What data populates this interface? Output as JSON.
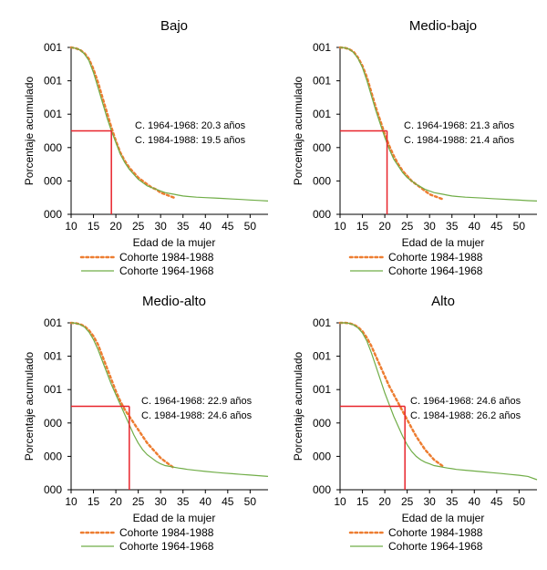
{
  "colors": {
    "cohort_1984": "#ED7D31",
    "cohort_1964": "#70AD47",
    "reference": "#E8242B",
    "axis": "#000000"
  },
  "chart_data": [
    {
      "type": "line",
      "title": "Bajo",
      "xlabel": "Edad de la mujer",
      "ylabel": "Porcentaje acumulado",
      "x_ticks": [
        "10",
        "15",
        "20",
        "25",
        "30",
        "35",
        "40",
        "45",
        "50"
      ],
      "y_ticks": [
        "000",
        "000",
        "000",
        "001",
        "001",
        "001"
      ],
      "xlim": [
        10,
        54
      ],
      "ylim": [
        0,
        1
      ],
      "grid": false,
      "legend_position": "bottom",
      "legend": [
        "Cohorte 1984-1988",
        "Cohorte 1964-1968"
      ],
      "annotations": [
        "C. 1964-1968: 20.3 años",
        "C. 1984-1988: 19.5 años"
      ],
      "reference": {
        "x": 19,
        "y": 0.5
      },
      "series": [
        {
          "key": "c1984",
          "style": "dotted",
          "x": [
            10,
            11,
            12,
            13,
            14,
            15,
            16,
            17,
            18,
            19,
            20,
            21,
            22,
            23,
            24,
            25,
            26,
            27,
            28,
            29,
            30,
            31,
            32,
            33
          ],
          "y": [
            1.0,
            0.995,
            0.985,
            0.965,
            0.93,
            0.87,
            0.79,
            0.7,
            0.61,
            0.52,
            0.44,
            0.37,
            0.32,
            0.28,
            0.25,
            0.22,
            0.2,
            0.18,
            0.16,
            0.15,
            0.13,
            0.12,
            0.11,
            0.1
          ]
        },
        {
          "key": "c1964",
          "style": "solid",
          "x": [
            10,
            11,
            12,
            13,
            14,
            15,
            16,
            17,
            18,
            19,
            20,
            21,
            22,
            23,
            24,
            25,
            26,
            27,
            28,
            29,
            30,
            31,
            32,
            33,
            34,
            35,
            36,
            38,
            40,
            42,
            44,
            46,
            48,
            50,
            52,
            54
          ],
          "y": [
            1.0,
            0.995,
            0.985,
            0.96,
            0.92,
            0.85,
            0.76,
            0.67,
            0.58,
            0.5,
            0.43,
            0.36,
            0.31,
            0.27,
            0.24,
            0.21,
            0.19,
            0.17,
            0.16,
            0.15,
            0.14,
            0.13,
            0.125,
            0.12,
            0.115,
            0.11,
            0.107,
            0.103,
            0.1,
            0.098,
            0.095,
            0.092,
            0.089,
            0.086,
            0.083,
            0.08
          ]
        }
      ]
    },
    {
      "type": "line",
      "title": "Medio-bajo",
      "xlabel": "Edad de la mujer",
      "ylabel": "Porcentaje acumulado",
      "x_ticks": [
        "10",
        "15",
        "20",
        "25",
        "30",
        "35",
        "40",
        "45",
        "50"
      ],
      "y_ticks": [
        "000",
        "000",
        "000",
        "001",
        "001",
        "001"
      ],
      "xlim": [
        10,
        54
      ],
      "ylim": [
        0,
        1
      ],
      "grid": false,
      "legend_position": "bottom",
      "legend": [
        "Cohorte 1984-1988",
        "Cohorte 1964-1968"
      ],
      "annotations": [
        "C. 1964-1968: 21.3 años",
        "C. 1984-1988: 21.4 años"
      ],
      "reference": {
        "x": 20.5,
        "y": 0.5
      },
      "series": [
        {
          "key": "c1984",
          "style": "dotted",
          "x": [
            10,
            11,
            12,
            13,
            14,
            15,
            16,
            17,
            18,
            19,
            20,
            21,
            22,
            23,
            24,
            25,
            26,
            27,
            28,
            29,
            30,
            31,
            32,
            33
          ],
          "y": [
            1.0,
            0.998,
            0.99,
            0.975,
            0.94,
            0.89,
            0.82,
            0.73,
            0.64,
            0.56,
            0.48,
            0.41,
            0.35,
            0.3,
            0.26,
            0.23,
            0.2,
            0.18,
            0.16,
            0.14,
            0.12,
            0.11,
            0.1,
            0.09
          ]
        },
        {
          "key": "c1964",
          "style": "solid",
          "x": [
            10,
            11,
            12,
            13,
            14,
            15,
            16,
            17,
            18,
            19,
            20,
            21,
            22,
            23,
            24,
            25,
            26,
            27,
            28,
            29,
            30,
            31,
            32,
            33,
            34,
            35,
            36,
            38,
            40,
            42,
            44,
            46,
            48,
            50,
            52,
            54
          ],
          "y": [
            1.0,
            0.998,
            0.99,
            0.97,
            0.935,
            0.88,
            0.8,
            0.71,
            0.62,
            0.54,
            0.46,
            0.39,
            0.33,
            0.29,
            0.25,
            0.22,
            0.2,
            0.18,
            0.165,
            0.15,
            0.14,
            0.13,
            0.125,
            0.12,
            0.115,
            0.11,
            0.107,
            0.103,
            0.1,
            0.097,
            0.094,
            0.091,
            0.088,
            0.085,
            0.082,
            0.08
          ]
        }
      ]
    },
    {
      "type": "line",
      "title": "Medio-alto",
      "xlabel": "Edad de la mujer",
      "ylabel": "Porcentaje acumulado",
      "x_ticks": [
        "10",
        "15",
        "20",
        "25",
        "30",
        "35",
        "40",
        "45",
        "50"
      ],
      "y_ticks": [
        "000",
        "000",
        "000",
        "001",
        "001",
        "001"
      ],
      "xlim": [
        10,
        54
      ],
      "ylim": [
        0,
        1
      ],
      "grid": false,
      "legend_position": "bottom",
      "legend": [
        "Cohorte 1984-1988",
        "Cohorte 1964-1968"
      ],
      "annotations": [
        "C. 1964-1968: 22.9 años",
        "C. 1984-1988: 24.6 años"
      ],
      "reference": {
        "x": 23,
        "y": 0.5
      },
      "series": [
        {
          "key": "c1984",
          "style": "dotted",
          "x": [
            10,
            11,
            12,
            13,
            14,
            15,
            16,
            17,
            18,
            19,
            20,
            21,
            22,
            23,
            24,
            25,
            26,
            27,
            28,
            29,
            30,
            31,
            32,
            33
          ],
          "y": [
            1.0,
            0.998,
            0.992,
            0.98,
            0.955,
            0.92,
            0.87,
            0.8,
            0.73,
            0.66,
            0.59,
            0.53,
            0.48,
            0.44,
            0.4,
            0.36,
            0.32,
            0.28,
            0.25,
            0.22,
            0.19,
            0.17,
            0.15,
            0.13
          ]
        },
        {
          "key": "c1964",
          "style": "solid",
          "x": [
            10,
            11,
            12,
            13,
            14,
            15,
            16,
            17,
            18,
            19,
            20,
            21,
            22,
            23,
            24,
            25,
            26,
            27,
            28,
            29,
            30,
            31,
            32,
            33,
            34,
            35,
            36,
            38,
            40,
            42,
            44,
            46,
            48,
            50,
            52,
            54
          ],
          "y": [
            1.0,
            0.998,
            0.99,
            0.975,
            0.945,
            0.9,
            0.84,
            0.77,
            0.7,
            0.63,
            0.57,
            0.51,
            0.45,
            0.39,
            0.33,
            0.28,
            0.24,
            0.21,
            0.19,
            0.17,
            0.155,
            0.145,
            0.14,
            0.135,
            0.13,
            0.126,
            0.122,
            0.116,
            0.11,
            0.105,
            0.1,
            0.096,
            0.092,
            0.088,
            0.084,
            0.08
          ]
        }
      ]
    },
    {
      "type": "line",
      "title": "Alto",
      "xlabel": "Edad de la mujer",
      "ylabel": "Porcentaje acumulado",
      "x_ticks": [
        "10",
        "15",
        "20",
        "25",
        "30",
        "35",
        "40",
        "45",
        "50"
      ],
      "y_ticks": [
        "000",
        "000",
        "000",
        "001",
        "001",
        "001"
      ],
      "xlim": [
        10,
        54
      ],
      "ylim": [
        0,
        1
      ],
      "grid": false,
      "legend_position": "bottom",
      "legend": [
        "Cohorte 1984-1988",
        "Cohorte 1964-1968"
      ],
      "annotations": [
        "C. 1964-1968: 24.6 años",
        "C. 1984-1988: 26.2 años"
      ],
      "reference": {
        "x": 24.5,
        "y": 0.5
      },
      "series": [
        {
          "key": "c1984",
          "style": "dotted",
          "x": [
            10,
            11,
            12,
            13,
            14,
            15,
            16,
            17,
            18,
            19,
            20,
            21,
            22,
            23,
            24,
            25,
            26,
            27,
            28,
            29,
            30,
            31,
            32,
            33
          ],
          "y": [
            1.0,
            1.0,
            0.998,
            0.99,
            0.975,
            0.95,
            0.91,
            0.86,
            0.8,
            0.74,
            0.68,
            0.62,
            0.57,
            0.52,
            0.47,
            0.42,
            0.37,
            0.32,
            0.28,
            0.24,
            0.21,
            0.18,
            0.16,
            0.14
          ]
        },
        {
          "key": "c1964",
          "style": "solid",
          "x": [
            10,
            11,
            12,
            13,
            14,
            15,
            16,
            17,
            18,
            19,
            20,
            21,
            22,
            23,
            24,
            25,
            26,
            27,
            28,
            29,
            30,
            31,
            32,
            33,
            34,
            35,
            36,
            38,
            40,
            42,
            44,
            46,
            48,
            50,
            52,
            54
          ],
          "y": [
            1.0,
            1.0,
            0.997,
            0.988,
            0.97,
            0.94,
            0.89,
            0.82,
            0.74,
            0.66,
            0.58,
            0.51,
            0.44,
            0.38,
            0.32,
            0.27,
            0.23,
            0.2,
            0.18,
            0.165,
            0.155,
            0.145,
            0.14,
            0.135,
            0.13,
            0.126,
            0.122,
            0.117,
            0.112,
            0.107,
            0.102,
            0.097,
            0.092,
            0.087,
            0.08,
            0.06
          ]
        }
      ]
    }
  ]
}
